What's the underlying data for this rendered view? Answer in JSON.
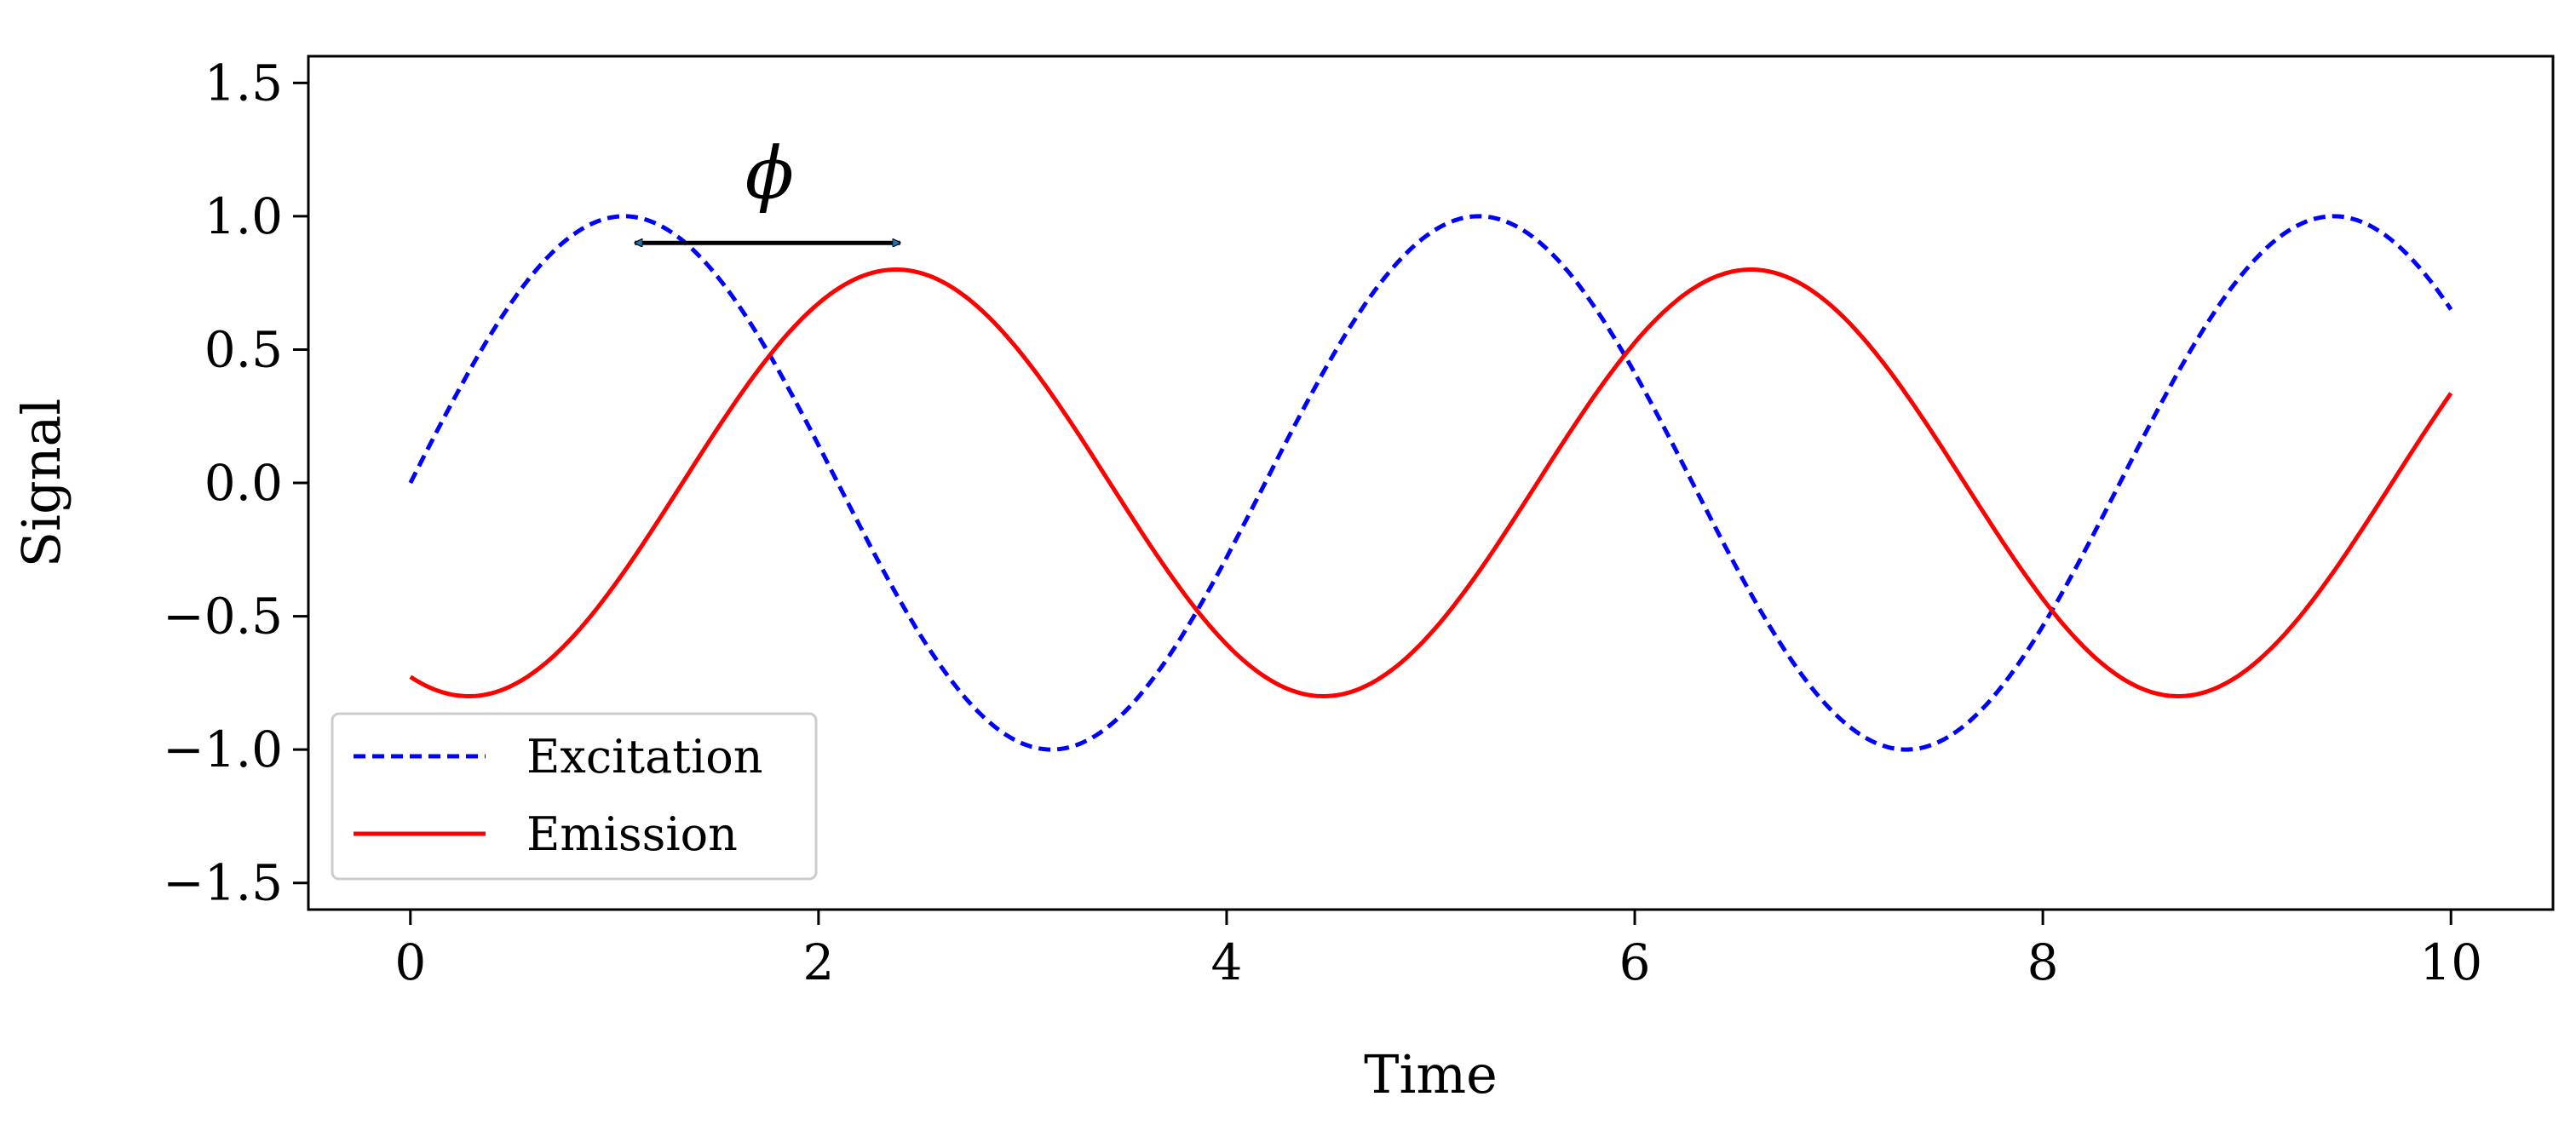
{
  "chart_data": {
    "type": "line",
    "title": "",
    "xlabel": "Time",
    "ylabel": "Signal",
    "xlim": [
      -0.5,
      10.5
    ],
    "ylim": [
      -1.6,
      1.6
    ],
    "xticks": [
      0,
      2,
      4,
      6,
      8,
      10
    ],
    "xtick_labels": [
      "0",
      "2",
      "4",
      "6",
      "8",
      "10"
    ],
    "yticks": [
      -1.5,
      -1.0,
      -0.5,
      0.0,
      0.5,
      1.0,
      1.5
    ],
    "ytick_labels": [
      "−1.5",
      "−1.0",
      "−0.5",
      "0.0",
      "0.5",
      "1.0",
      "1.5"
    ],
    "grid": false,
    "legend": {
      "placement": "lower-left"
    },
    "series": [
      {
        "name": "Excitation",
        "color": "#0000ff",
        "linestyle": "dashed",
        "function": "1.0*sin(1.5*t)",
        "x": [
          0.0,
          0.5,
          1.047,
          1.5,
          2.0,
          2.5,
          3.142,
          3.5,
          4.0,
          4.5,
          5.236,
          5.5,
          6.0,
          6.5,
          7.33,
          7.5,
          8.0,
          8.5,
          9.425,
          10.0
        ],
        "y": [
          0.0,
          0.68,
          1.0,
          0.78,
          0.14,
          -0.57,
          -1.0,
          -0.86,
          -0.28,
          0.43,
          1.0,
          0.92,
          0.41,
          -0.28,
          -1.0,
          -0.97,
          -0.54,
          0.13,
          1.0,
          0.65
        ]
      },
      {
        "name": "Emission",
        "color": "#ff0000",
        "linestyle": "solid",
        "function": "0.8*sin(1.5*t - 2.0)",
        "x": [
          0.0,
          0.28,
          0.5,
          1.0,
          1.5,
          2.0,
          2.38,
          3.0,
          3.5,
          4.0,
          4.48,
          5.0,
          5.5,
          6.0,
          6.57,
          7.0,
          7.5,
          8.0,
          8.67,
          9.0,
          9.5,
          10.0
        ],
        "y": [
          -0.73,
          -0.8,
          -0.75,
          -0.38,
          0.2,
          0.67,
          0.8,
          0.58,
          0.09,
          -0.45,
          -0.8,
          -0.62,
          -0.15,
          0.42,
          0.8,
          0.68,
          0.24,
          -0.33,
          -0.8,
          -0.74,
          -0.35,
          0.3
        ]
      }
    ],
    "annotations": [
      {
        "type": "double-arrow",
        "x_start": 1.1,
        "x_end": 2.4,
        "y": 0.9,
        "label": "ϕ",
        "label_x": 1.76,
        "label_y": 1.1
      }
    ]
  }
}
